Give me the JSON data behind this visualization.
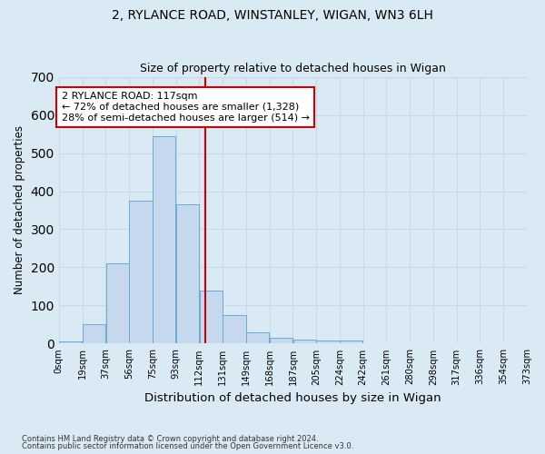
{
  "title_line1": "2, RYLANCE ROAD, WINSTANLEY, WIGAN, WN3 6LH",
  "title_line2": "Size of property relative to detached houses in Wigan",
  "xlabel": "Distribution of detached houses by size in Wigan",
  "ylabel": "Number of detached properties",
  "bin_labels": [
    "0sqm",
    "19sqm",
    "37sqm",
    "56sqm",
    "75sqm",
    "93sqm",
    "112sqm",
    "131sqm",
    "149sqm",
    "168sqm",
    "187sqm",
    "205sqm",
    "224sqm",
    "242sqm",
    "261sqm",
    "280sqm",
    "298sqm",
    "317sqm",
    "336sqm",
    "354sqm",
    "373sqm"
  ],
  "bar_heights": [
    5,
    50,
    210,
    375,
    545,
    365,
    140,
    75,
    30,
    15,
    10,
    8,
    7,
    2,
    0,
    2,
    0,
    0,
    0,
    2
  ],
  "bar_color": "#c5d8ee",
  "bar_edge_color": "#6aaad4",
  "annotation_text": "2 RYLANCE ROAD: 117sqm\n← 72% of detached houses are smaller (1,328)\n28% of semi-detached houses are larger (514) →",
  "annotation_box_color": "#ffffff",
  "annotation_box_edge_color": "#cc0000",
  "vline_color": "#cc0000",
  "ylim": [
    0,
    700
  ],
  "yticks": [
    0,
    100,
    200,
    300,
    400,
    500,
    600,
    700
  ],
  "grid_color": "#c8d8e8",
  "background_color": "#daeaf5",
  "footer_line1": "Contains HM Land Registry data © Crown copyright and database right 2024.",
  "footer_line2": "Contains public sector information licensed under the Open Government Licence v3.0."
}
